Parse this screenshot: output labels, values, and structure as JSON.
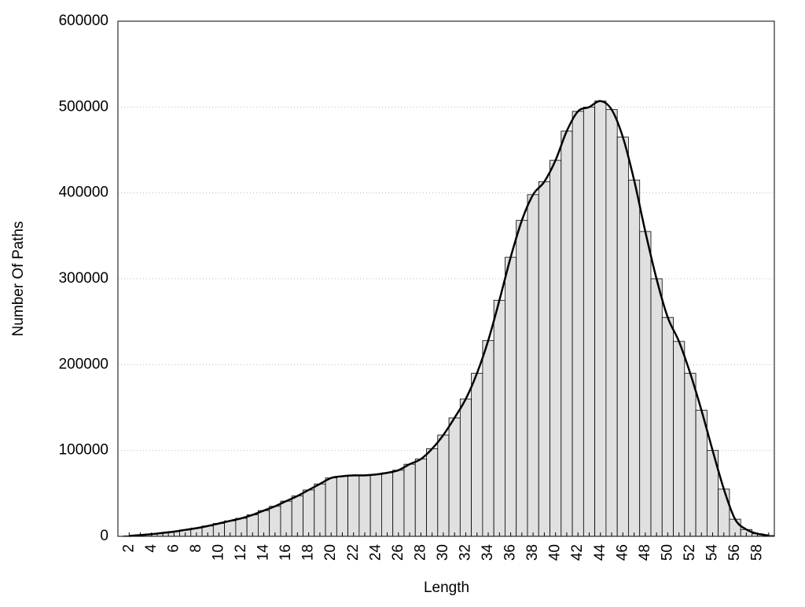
{
  "chart_data": {
    "type": "bar",
    "x_label": "Length",
    "y_label": "Number Of Paths",
    "categories": [
      "2",
      null,
      "4",
      null,
      "6",
      null,
      "8",
      null,
      "10",
      null,
      "12",
      null,
      "14",
      null,
      "16",
      null,
      "18",
      null,
      "20",
      null,
      "22",
      null,
      "24",
      null,
      "26",
      null,
      "28",
      null,
      "30",
      null,
      "32",
      null,
      "34",
      null,
      "36",
      null,
      "38",
      null,
      "40",
      null,
      "42",
      null,
      "44",
      null,
      "46",
      null,
      "48",
      null,
      "50",
      null,
      "52",
      null,
      "54",
      null,
      "56",
      null,
      "58",
      null
    ],
    "values": [
      500,
      1500,
      2500,
      4000,
      5500,
      7500,
      9500,
      12000,
      15000,
      18000,
      21000,
      25000,
      30000,
      35000,
      41000,
      47000,
      54000,
      61000,
      68000,
      70000,
      71000,
      71000,
      72000,
      74000,
      77000,
      84000,
      90000,
      102000,
      118000,
      138000,
      160000,
      190000,
      228000,
      275000,
      325000,
      368000,
      398000,
      413000,
      438000,
      472000,
      495000,
      500000,
      507000,
      497000,
      465000,
      415000,
      355000,
      300000,
      255000,
      227000,
      190000,
      147000,
      100000,
      55000,
      20000,
      8000,
      3000,
      1000
    ],
    "color": "#e0e0e0",
    "edge_color": "#000000",
    "smooth_line": true,
    "line_color": "#000000",
    "ylim": [
      0,
      600000
    ],
    "yticks": [
      0,
      100000,
      200000,
      300000,
      400000,
      500000,
      600000
    ],
    "grid": true
  }
}
